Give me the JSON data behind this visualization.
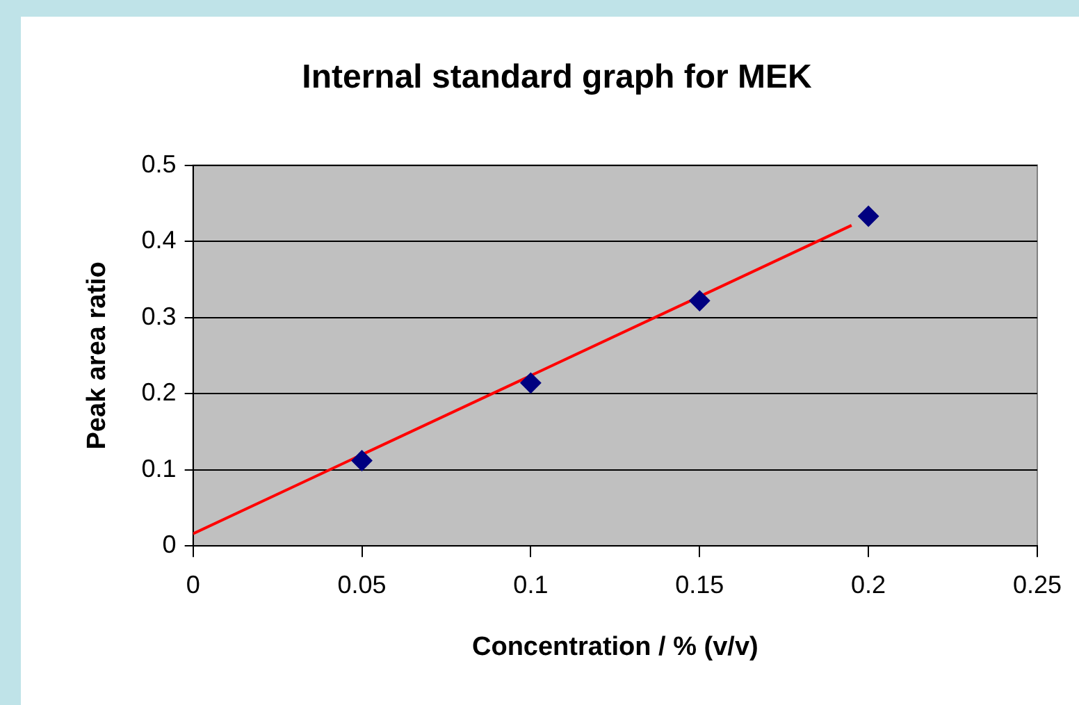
{
  "chart_data": {
    "type": "scatter",
    "title": "Internal standard graph for MEK",
    "xlabel": "Concentration / % (v/v)",
    "ylabel": "Peak area ratio",
    "x": [
      0.05,
      0.1,
      0.15,
      0.2
    ],
    "series": [
      {
        "color": "#000080",
        "values": [
          0.112,
          0.214,
          0.322,
          0.433
        ],
        "marker": "diamond"
      },
      {
        "type": "line",
        "color": "#ff0000",
        "x": [
          0,
          0.195
        ],
        "values": [
          0.016,
          0.421
        ],
        "marker": "none"
      }
    ],
    "xlim": [
      0,
      0.25
    ],
    "xticks": [
      0,
      0.05,
      0.1,
      0.15,
      0.2,
      0.25
    ],
    "ylim": [
      0,
      0.5
    ],
    "yticks": [
      0,
      0.1,
      0.2,
      0.3,
      0.4,
      0.5
    ],
    "grid": "y",
    "legend": false
  }
}
